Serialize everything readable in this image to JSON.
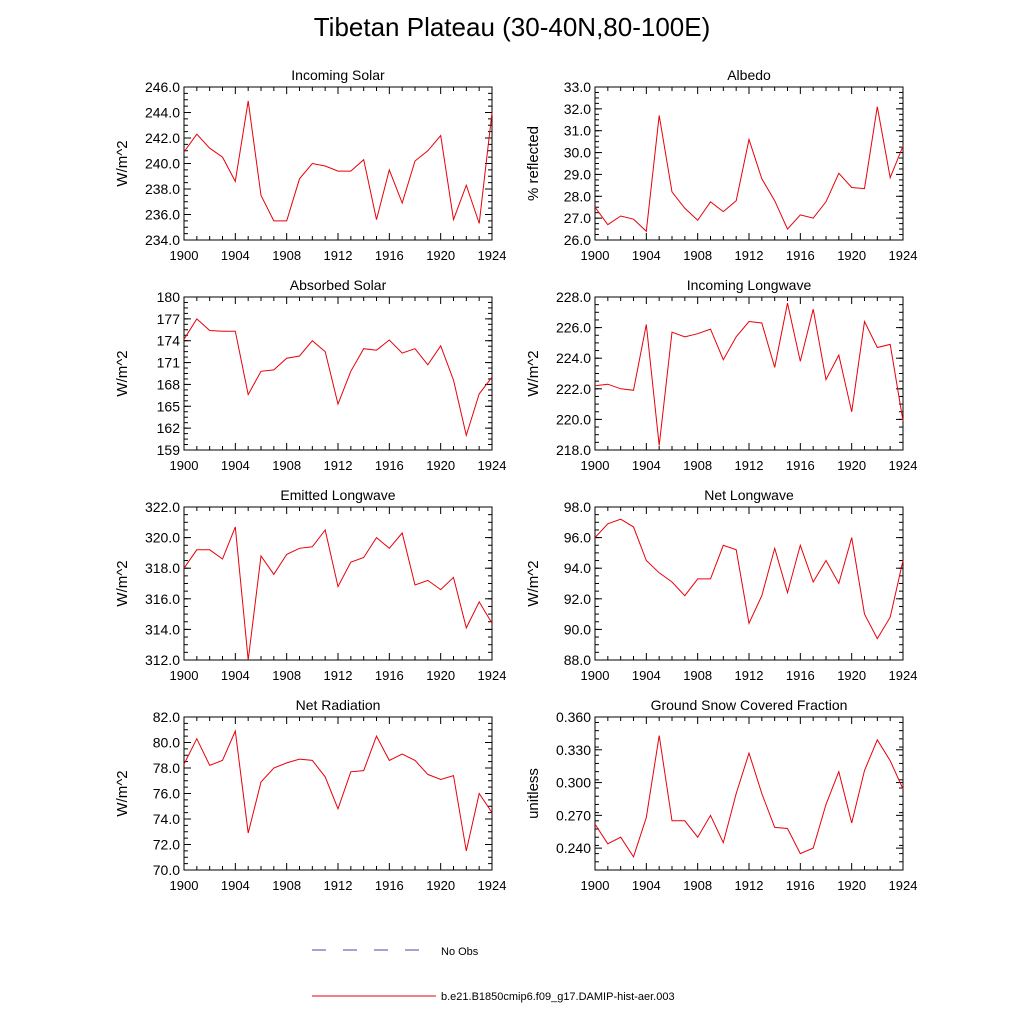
{
  "title": "Tibetan Plateau (30-40N,80-100E)",
  "colors": {
    "model": "#e8000b",
    "obs": "#4a4aa8"
  },
  "legend": {
    "obs_label": "No Obs",
    "model_label": "b.e21.B1850cmip6.f09_g17.DAMIP-hist-aer.003"
  },
  "x_ticks": [
    "1900",
    "1904",
    "1908",
    "1912",
    "1916",
    "1920",
    "1924"
  ],
  "chart_data": [
    {
      "type": "line",
      "title": "Incoming Solar",
      "ylabel": "W/m^2",
      "xlim": [
        1900,
        1924
      ],
      "ylim": [
        234,
        246
      ],
      "yticks": [
        234,
        236,
        238,
        240,
        242,
        244,
        246
      ],
      "ytick_labels": [
        "234.0",
        "236.0",
        "238.0",
        "240.0",
        "242.0",
        "244.0",
        "246.0"
      ],
      "x": [
        1900,
        1901,
        1902,
        1903,
        1904,
        1905,
        1906,
        1907,
        1908,
        1909,
        1910,
        1911,
        1912,
        1913,
        1914,
        1915,
        1916,
        1917,
        1918,
        1919,
        1920,
        1921,
        1922,
        1923,
        1924
      ],
      "values": [
        240.9,
        242.3,
        241.2,
        240.5,
        238.6,
        244.9,
        237.5,
        235.5,
        235.5,
        238.8,
        240.0,
        239.8,
        239.4,
        239.4,
        240.3,
        235.6,
        239.5,
        236.9,
        240.2,
        241.0,
        242.2,
        235.6,
        238.3,
        235.3,
        244.0
      ]
    },
    {
      "type": "line",
      "title": "Albedo",
      "ylabel": "% reflected",
      "xlim": [
        1900,
        1924
      ],
      "ylim": [
        26,
        33
      ],
      "yticks": [
        26,
        27,
        28,
        29,
        30,
        31,
        32,
        33
      ],
      "ytick_labels": [
        "26.0",
        "27.0",
        "28.0",
        "29.0",
        "30.0",
        "31.0",
        "32.0",
        "33.0"
      ],
      "x": [
        1900,
        1901,
        1902,
        1903,
        1904,
        1905,
        1906,
        1907,
        1908,
        1909,
        1910,
        1911,
        1912,
        1913,
        1914,
        1915,
        1916,
        1917,
        1918,
        1919,
        1920,
        1921,
        1922,
        1923,
        1924
      ],
      "values": [
        27.5,
        26.7,
        27.1,
        26.95,
        26.4,
        31.7,
        28.2,
        27.45,
        26.9,
        27.75,
        27.3,
        27.8,
        30.6,
        28.8,
        27.8,
        26.5,
        27.15,
        27.0,
        27.75,
        29.05,
        28.4,
        28.35,
        32.1,
        28.85,
        30.3
      ]
    },
    {
      "type": "line",
      "title": "Absorbed Solar",
      "ylabel": "W/m^2",
      "xlim": [
        1900,
        1924
      ],
      "ylim": [
        159,
        180
      ],
      "yticks": [
        159,
        162,
        165,
        168,
        171,
        174,
        177,
        180
      ],
      "ytick_labels": [
        "159",
        "162",
        "165",
        "168",
        "171",
        "174",
        "177",
        "180"
      ],
      "x": [
        1900,
        1901,
        1902,
        1903,
        1904,
        1905,
        1906,
        1907,
        1908,
        1909,
        1910,
        1911,
        1912,
        1913,
        1914,
        1915,
        1916,
        1917,
        1918,
        1919,
        1920,
        1921,
        1922,
        1923,
        1924
      ],
      "values": [
        174.2,
        177.0,
        175.4,
        175.3,
        175.3,
        166.6,
        169.8,
        170.0,
        171.6,
        171.9,
        174.0,
        172.5,
        165.3,
        169.8,
        172.9,
        172.7,
        174.1,
        172.3,
        172.9,
        170.7,
        173.3,
        168.6,
        161.0,
        166.7,
        169.0
      ]
    },
    {
      "type": "line",
      "title": "Incoming Longwave",
      "ylabel": "W/m^2",
      "xlim": [
        1900,
        1924
      ],
      "ylim": [
        218,
        228
      ],
      "yticks": [
        218,
        220,
        222,
        224,
        226,
        228
      ],
      "ytick_labels": [
        "218.0",
        "220.0",
        "222.0",
        "224.0",
        "226.0",
        "228.0"
      ],
      "x": [
        1900,
        1901,
        1902,
        1903,
        1904,
        1905,
        1906,
        1907,
        1908,
        1909,
        1910,
        1911,
        1912,
        1913,
        1914,
        1915,
        1916,
        1917,
        1918,
        1919,
        1920,
        1921,
        1922,
        1923,
        1924
      ],
      "values": [
        222.2,
        222.3,
        222.0,
        221.9,
        226.2,
        218.3,
        225.7,
        225.4,
        225.6,
        225.9,
        223.9,
        225.4,
        226.4,
        226.3,
        223.4,
        227.6,
        223.8,
        227.2,
        222.6,
        224.2,
        220.5,
        226.4,
        224.7,
        224.9,
        219.9
      ]
    },
    {
      "type": "line",
      "title": "Emitted Longwave",
      "ylabel": "W/m^2",
      "xlim": [
        1900,
        1924
      ],
      "ylim": [
        312,
        322
      ],
      "yticks": [
        312,
        314,
        316,
        318,
        320,
        322
      ],
      "ytick_labels": [
        "312.0",
        "314.0",
        "316.0",
        "318.0",
        "320.0",
        "322.0"
      ],
      "x": [
        1900,
        1901,
        1902,
        1903,
        1904,
        1905,
        1906,
        1907,
        1908,
        1909,
        1910,
        1911,
        1912,
        1913,
        1914,
        1915,
        1916,
        1917,
        1918,
        1919,
        1920,
        1921,
        1922,
        1923,
        1924
      ],
      "values": [
        318.0,
        319.2,
        319.2,
        318.6,
        320.7,
        312.0,
        318.8,
        317.6,
        318.9,
        319.3,
        319.4,
        320.5,
        316.8,
        318.4,
        318.7,
        320.0,
        319.3,
        320.3,
        316.9,
        317.2,
        316.6,
        317.4,
        314.1,
        315.8,
        314.4
      ]
    },
    {
      "type": "line",
      "title": "Net Longwave",
      "ylabel": "W/m^2",
      "xlim": [
        1900,
        1924
      ],
      "ylim": [
        88,
        98
      ],
      "yticks": [
        88,
        90,
        92,
        94,
        96,
        98
      ],
      "ytick_labels": [
        "88.0",
        "90.0",
        "92.0",
        "94.0",
        "96.0",
        "98.0"
      ],
      "x": [
        1900,
        1901,
        1902,
        1903,
        1904,
        1905,
        1906,
        1907,
        1908,
        1909,
        1910,
        1911,
        1912,
        1913,
        1914,
        1915,
        1916,
        1917,
        1918,
        1919,
        1920,
        1921,
        1922,
        1923,
        1924
      ],
      "values": [
        96.0,
        96.9,
        97.2,
        96.7,
        94.5,
        93.7,
        93.1,
        92.2,
        93.3,
        93.3,
        95.5,
        95.2,
        90.4,
        92.2,
        95.3,
        92.4,
        95.5,
        93.1,
        94.5,
        93.0,
        96.0,
        91.0,
        89.4,
        90.8,
        94.5
      ]
    },
    {
      "type": "line",
      "title": "Net Radiation",
      "ylabel": "W/m^2",
      "xlim": [
        1900,
        1924
      ],
      "ylim": [
        70,
        82
      ],
      "yticks": [
        70,
        72,
        74,
        76,
        78,
        80,
        82
      ],
      "ytick_labels": [
        "70.0",
        "72.0",
        "74.0",
        "76.0",
        "78.0",
        "80.0",
        "82.0"
      ],
      "x": [
        1900,
        1901,
        1902,
        1903,
        1904,
        1905,
        1906,
        1907,
        1908,
        1909,
        1910,
        1911,
        1912,
        1913,
        1914,
        1915,
        1916,
        1917,
        1918,
        1919,
        1920,
        1921,
        1922,
        1923,
        1924
      ],
      "values": [
        78.3,
        80.3,
        78.2,
        78.6,
        80.9,
        72.9,
        76.9,
        78.0,
        78.4,
        78.7,
        78.6,
        77.3,
        74.8,
        77.7,
        77.8,
        80.5,
        78.6,
        79.1,
        78.6,
        77.5,
        77.1,
        77.4,
        71.5,
        76.0,
        74.5
      ]
    },
    {
      "type": "line",
      "title": "Ground Snow Covered Fraction",
      "ylabel": "unitless",
      "xlim": [
        1900,
        1924
      ],
      "ylim": [
        0.22,
        0.36
      ],
      "yticks": [
        0.24,
        0.27,
        0.3,
        0.33,
        0.36
      ],
      "ytick_labels": [
        "0.240",
        "0.270",
        "0.300",
        "0.330",
        "0.360"
      ],
      "x": [
        1900,
        1901,
        1902,
        1903,
        1904,
        1905,
        1906,
        1907,
        1908,
        1909,
        1910,
        1911,
        1912,
        1913,
        1914,
        1915,
        1916,
        1917,
        1918,
        1919,
        1920,
        1921,
        1922,
        1923,
        1924
      ],
      "values": [
        0.262,
        0.244,
        0.25,
        0.232,
        0.268,
        0.343,
        0.265,
        0.265,
        0.25,
        0.27,
        0.245,
        0.29,
        0.327,
        0.29,
        0.259,
        0.258,
        0.235,
        0.24,
        0.28,
        0.31,
        0.263,
        0.311,
        0.339,
        0.32,
        0.294
      ]
    }
  ]
}
